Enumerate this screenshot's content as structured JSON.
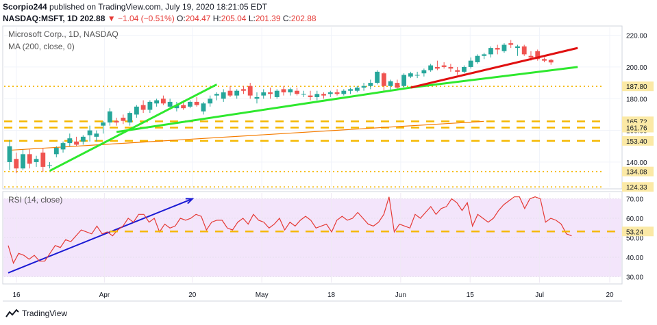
{
  "header": {
    "author": "Scorpio244",
    "published_text": "published on TradingView.com, July 19, 2020 18:21:05 EDT",
    "ticker": "NASDAQ:MSFT, 1D",
    "last_price": "202.88",
    "change_arrow": "▼",
    "change": "−1.04 (−0.51%)",
    "o_label": "O:",
    "o_value": "204.47",
    "h_label": "H:",
    "h_value": "205.04",
    "l_label": "L:",
    "l_value": "201.39",
    "c_label": "C:",
    "c_value": "202.88"
  },
  "footer": {
    "brand": "TradingView"
  },
  "colors": {
    "up": "#26a69a",
    "down": "#ef5350",
    "green_trend": "#2ee82e",
    "red_trend": "#e01010",
    "blue_trend": "#1a1ad4",
    "gold_level": "#f5b800",
    "ma": "#f57c00",
    "rsi_line": "#e53935",
    "rsi_band": "#f3e5fb"
  },
  "chart_data": [
    {
      "type": "candlestick",
      "title": "Microsoft Corp., 1D, NASDAQ",
      "indicator_label": "MA (200, close, 0)",
      "y_ticks": [
        "220.00",
        "200.00",
        "180.00",
        "160.00",
        "140.00"
      ],
      "ylim": [
        124,
        225
      ],
      "x_ticks": [
        "16",
        "Apr",
        "20",
        "May",
        "18",
        "Jun",
        "15",
        "Jul",
        "20"
      ],
      "price_levels": [
        {
          "value": 187.8,
          "label": "187.80",
          "style": "dotted"
        },
        {
          "value": 165.72,
          "label": "165.72",
          "style": "dashed"
        },
        {
          "value": 161.76,
          "label": "161.76",
          "style": "dashed"
        },
        {
          "value": 153.4,
          "label": "153.40",
          "style": "dashed"
        },
        {
          "value": 134.08,
          "label": "134.08",
          "style": "dotted"
        },
        {
          "value": 124.33,
          "label": "124.33",
          "style": "dotted"
        }
      ],
      "candles": [
        {
          "o": 140,
          "h": 154,
          "l": 135,
          "c": 150
        },
        {
          "o": 142,
          "h": 146,
          "l": 133,
          "c": 136
        },
        {
          "o": 136,
          "h": 148,
          "l": 135,
          "c": 145
        },
        {
          "o": 145,
          "h": 148,
          "l": 136,
          "c": 139
        },
        {
          "o": 140,
          "h": 144,
          "l": 137,
          "c": 142
        },
        {
          "o": 146,
          "h": 149,
          "l": 134,
          "c": 137
        },
        {
          "o": 138,
          "h": 140,
          "l": 136,
          "c": 138
        },
        {
          "o": 145,
          "h": 150,
          "l": 143,
          "c": 149
        },
        {
          "o": 148,
          "h": 153,
          "l": 146,
          "c": 152
        },
        {
          "o": 152,
          "h": 158,
          "l": 150,
          "c": 155
        },
        {
          "o": 153,
          "h": 156,
          "l": 150,
          "c": 151
        },
        {
          "o": 153,
          "h": 157,
          "l": 151,
          "c": 156
        },
        {
          "o": 157,
          "h": 163,
          "l": 153,
          "c": 160
        },
        {
          "o": 156,
          "h": 160,
          "l": 153,
          "c": 158
        },
        {
          "o": 163,
          "h": 166,
          "l": 158,
          "c": 165
        },
        {
          "o": 165,
          "h": 174,
          "l": 163,
          "c": 172
        },
        {
          "o": 166,
          "h": 168,
          "l": 163,
          "c": 165
        },
        {
          "o": 168,
          "h": 170,
          "l": 164,
          "c": 166
        },
        {
          "o": 165,
          "h": 172,
          "l": 163,
          "c": 171
        },
        {
          "o": 170,
          "h": 176,
          "l": 168,
          "c": 175
        },
        {
          "o": 176,
          "h": 179,
          "l": 171,
          "c": 173
        },
        {
          "o": 173,
          "h": 179,
          "l": 171,
          "c": 178
        },
        {
          "o": 177,
          "h": 180,
          "l": 175,
          "c": 179
        },
        {
          "o": 180,
          "h": 182,
          "l": 176,
          "c": 177
        },
        {
          "o": 175,
          "h": 180,
          "l": 173,
          "c": 178
        },
        {
          "o": 174,
          "h": 178,
          "l": 172,
          "c": 176
        },
        {
          "o": 176,
          "h": 179,
          "l": 173,
          "c": 174
        },
        {
          "o": 175,
          "h": 179,
          "l": 174,
          "c": 178
        },
        {
          "o": 178,
          "h": 181,
          "l": 175,
          "c": 176
        },
        {
          "o": 172,
          "h": 178,
          "l": 170,
          "c": 177
        },
        {
          "o": 177,
          "h": 182,
          "l": 175,
          "c": 180
        },
        {
          "o": 182,
          "h": 184,
          "l": 179,
          "c": 183
        },
        {
          "o": 180,
          "h": 186,
          "l": 178,
          "c": 184
        },
        {
          "o": 185,
          "h": 188,
          "l": 181,
          "c": 182
        },
        {
          "o": 182,
          "h": 186,
          "l": 180,
          "c": 185
        },
        {
          "o": 186,
          "h": 188,
          "l": 183,
          "c": 185
        },
        {
          "o": 188,
          "h": 190,
          "l": 180,
          "c": 182
        },
        {
          "o": 180,
          "h": 184,
          "l": 177,
          "c": 181
        },
        {
          "o": 182,
          "h": 186,
          "l": 180,
          "c": 184
        },
        {
          "o": 184,
          "h": 187,
          "l": 180,
          "c": 183
        },
        {
          "o": 181,
          "h": 186,
          "l": 180,
          "c": 185
        },
        {
          "o": 186,
          "h": 188,
          "l": 182,
          "c": 184
        },
        {
          "o": 184,
          "h": 187,
          "l": 182,
          "c": 186
        },
        {
          "o": 185,
          "h": 187,
          "l": 182,
          "c": 183
        },
        {
          "o": 183,
          "h": 185,
          "l": 181,
          "c": 183
        },
        {
          "o": 182,
          "h": 185,
          "l": 179,
          "c": 181
        },
        {
          "o": 181,
          "h": 185,
          "l": 179,
          "c": 183
        },
        {
          "o": 183,
          "h": 184,
          "l": 180,
          "c": 182
        },
        {
          "o": 183,
          "h": 185,
          "l": 181,
          "c": 184
        },
        {
          "o": 184,
          "h": 186,
          "l": 182,
          "c": 183
        },
        {
          "o": 183,
          "h": 186,
          "l": 182,
          "c": 185
        },
        {
          "o": 185,
          "h": 187,
          "l": 183,
          "c": 186
        },
        {
          "o": 185,
          "h": 188,
          "l": 184,
          "c": 187
        },
        {
          "o": 187,
          "h": 190,
          "l": 185,
          "c": 188
        },
        {
          "o": 188,
          "h": 192,
          "l": 186,
          "c": 190
        },
        {
          "o": 190,
          "h": 198,
          "l": 189,
          "c": 197
        },
        {
          "o": 196,
          "h": 197,
          "l": 185,
          "c": 188
        },
        {
          "o": 188,
          "h": 192,
          "l": 185,
          "c": 191
        },
        {
          "o": 190,
          "h": 192,
          "l": 186,
          "c": 187
        },
        {
          "o": 188,
          "h": 196,
          "l": 187,
          "c": 195
        },
        {
          "o": 194,
          "h": 197,
          "l": 193,
          "c": 196
        },
        {
          "o": 195,
          "h": 197,
          "l": 193,
          "c": 195
        },
        {
          "o": 196,
          "h": 199,
          "l": 194,
          "c": 198
        },
        {
          "o": 198,
          "h": 202,
          "l": 197,
          "c": 201
        },
        {
          "o": 200,
          "h": 204,
          "l": 198,
          "c": 199
        },
        {
          "o": 201,
          "h": 203,
          "l": 199,
          "c": 200
        },
        {
          "o": 200,
          "h": 202,
          "l": 197,
          "c": 199
        },
        {
          "o": 198,
          "h": 200,
          "l": 195,
          "c": 197
        },
        {
          "o": 197,
          "h": 201,
          "l": 196,
          "c": 200
        },
        {
          "o": 200,
          "h": 206,
          "l": 199,
          "c": 204
        },
        {
          "o": 203,
          "h": 208,
          "l": 202,
          "c": 207
        },
        {
          "o": 207,
          "h": 209,
          "l": 205,
          "c": 208
        },
        {
          "o": 208,
          "h": 213,
          "l": 206,
          "c": 212
        },
        {
          "o": 212,
          "h": 214,
          "l": 208,
          "c": 211
        },
        {
          "o": 210,
          "h": 215,
          "l": 209,
          "c": 214
        },
        {
          "o": 215,
          "h": 217,
          "l": 212,
          "c": 214
        },
        {
          "o": 212,
          "h": 214,
          "l": 207,
          "c": 213
        },
        {
          "o": 213,
          "h": 214,
          "l": 207,
          "c": 208
        },
        {
          "o": 207,
          "h": 210,
          "l": 204,
          "c": 206
        },
        {
          "o": 210,
          "h": 211,
          "l": 204,
          "c": 205
        },
        {
          "o": 205,
          "h": 206,
          "l": 203,
          "c": 204
        },
        {
          "o": 204.47,
          "h": 205.04,
          "l": 201.39,
          "c": 202.88
        }
      ],
      "ma_200": {
        "start": 147.5,
        "end": 165.72
      },
      "trendlines": [
        {
          "name": "green-upper",
          "from": {
            "bar": 6,
            "price": 134.5
          },
          "to": {
            "bar": 31,
            "price": 189
          }
        },
        {
          "name": "green-middle",
          "from": {
            "bar": 16,
            "price": 159
          },
          "to": {
            "bar": 60,
            "price": 187
          }
        },
        {
          "name": "green-lower",
          "from": {
            "bar": 60,
            "price": 187
          },
          "to": {
            "bar": 85,
            "price": 200
          }
        },
        {
          "name": "red",
          "from": {
            "bar": 60,
            "price": 187
          },
          "to": {
            "bar": 85,
            "price": 212
          }
        }
      ]
    },
    {
      "type": "line",
      "title": "RSI (14, close)",
      "y_ticks": [
        "70.00",
        "60.00",
        "50.00",
        "40.00",
        "30.00"
      ],
      "ylim": [
        27,
        73
      ],
      "level": {
        "value": 53.24,
        "label": "53.24"
      },
      "overbought": 70,
      "oversold": 30,
      "values": [
        46,
        37,
        42,
        41,
        39,
        41,
        38,
        38,
        42,
        46,
        45,
        49,
        48,
        51,
        54,
        53,
        52,
        56,
        52,
        53,
        51,
        54,
        56,
        60,
        58,
        62,
        62,
        58,
        60,
        53,
        57,
        55,
        56,
        60,
        59,
        60,
        62,
        61,
        54,
        58,
        59,
        59,
        55,
        54,
        58,
        60,
        57,
        62,
        59,
        58,
        55,
        57,
        60,
        54,
        58,
        56,
        59,
        61,
        59,
        55,
        56,
        57,
        53,
        59,
        61,
        59,
        60,
        63,
        60,
        57,
        56,
        58,
        62,
        71,
        53,
        57,
        56,
        55,
        62,
        60,
        63,
        66,
        62,
        65,
        66,
        70,
        68,
        64,
        68,
        56,
        62,
        60,
        58,
        60,
        64,
        67,
        69,
        71,
        71,
        65,
        70,
        71,
        70,
        58,
        60,
        59,
        57,
        52,
        51
      ],
      "trendline": {
        "from": {
          "bar": 0,
          "value": 32
        },
        "to": {
          "bar": 34,
          "value": 70
        }
      }
    }
  ]
}
